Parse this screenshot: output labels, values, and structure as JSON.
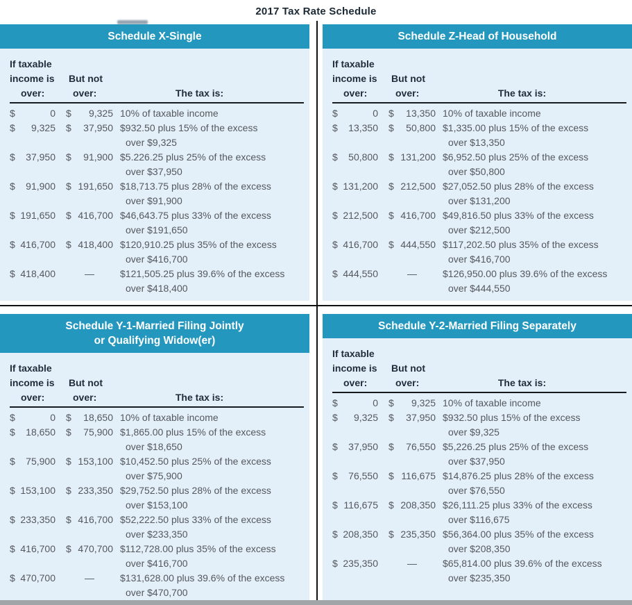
{
  "page_title": "2017 Tax Rate Schedule",
  "currency_symbol": "$",
  "no_upper_limit_symbol": "—",
  "column_headers": {
    "col1_lines": [
      "If taxable",
      "income is",
      "over:"
    ],
    "col2_lines": [
      "But not",
      "over:"
    ],
    "col3": "The tax is:"
  },
  "colors": {
    "header_teal": "#2397be",
    "panel_background": "#e3f0fa",
    "header_text": "#ffffff",
    "body_text": "#55575c",
    "column_header_text": "#1f2d3a",
    "divider": "#101010",
    "bottom_bar": "#a2a5a7"
  },
  "schedules": [
    {
      "id": "x-single",
      "title_lines": [
        "Schedule X-Single"
      ],
      "rows": [
        [
          "0",
          "9,325",
          "10% of taxable income",
          ""
        ],
        [
          "9,325",
          "37,950",
          "$932.50 plus 15% of the excess",
          "over $9,325"
        ],
        [
          "37,950",
          "91,900",
          "$5.226.25 plus 25% of the excess",
          "over $37,950"
        ],
        [
          "91,900",
          "191,650",
          "$18,713.75 plus 28% of the excess",
          "over $91,900"
        ],
        [
          "191,650",
          "416,700",
          "$46,643.75 plus 33% of the excess",
          "over $191,650"
        ],
        [
          "416,700",
          "418,400",
          "$120,910.25 plus 35% of the excess",
          "over $416,700"
        ],
        [
          "418,400",
          "—",
          "$121,505.25 plus 39.6% of the excess",
          "over $418,400"
        ]
      ]
    },
    {
      "id": "z-head-of-household",
      "title_lines": [
        "Schedule Z-Head of Household"
      ],
      "rows": [
        [
          "0",
          "13,350",
          "10% of taxable income",
          ""
        ],
        [
          "13,350",
          "50,800",
          "$1,335.00 plus 15% of the excess",
          "over $13,350"
        ],
        [
          "50,800",
          "131,200",
          "$6,952.50 plus 25% of the excess",
          "over $50,800"
        ],
        [
          "131,200",
          "212,500",
          "$27,052.50 plus 28% of the excess",
          "over $131,200"
        ],
        [
          "212,500",
          "416,700",
          "$49,816.50 plus 33% of the excess",
          "over $212,500"
        ],
        [
          "416,700",
          "444,550",
          "$117,202.50 plus 35% of the excess",
          "over $416,700"
        ],
        [
          "444,550",
          "—",
          "$126,950.00 plus 39.6% of the excess",
          "over $444,550"
        ]
      ]
    },
    {
      "id": "y1-married-filing-jointly",
      "title_lines": [
        "Schedule Y-1-Married Filing Jointly",
        "or Qualifying Widow(er)"
      ],
      "rows": [
        [
          "0",
          "18,650",
          "10% of taxable income",
          ""
        ],
        [
          "18,650",
          "75,900",
          "$1,865.00 plus 15% of the excess",
          "over $18,650"
        ],
        [
          "75,900",
          "153,100",
          "$10,452.50 plus 25% of the excess",
          "over $75,900"
        ],
        [
          "153,100",
          "233,350",
          "$29,752.50 plus 28% of the excess",
          "over $153,100"
        ],
        [
          "233,350",
          "416,700",
          "$52,222.50 plus 33% of the excess",
          "over $233,350"
        ],
        [
          "416,700",
          "470,700",
          "$112,728.00 plus 35% of the excess",
          "over $416,700"
        ],
        [
          "470,700",
          "—",
          "$131,628.00 plus 39.6% of the excess",
          "over $470,700"
        ]
      ]
    },
    {
      "id": "y2-married-filing-separately",
      "title_lines": [
        "Schedule Y-2-Married Filing Separately"
      ],
      "rows": [
        [
          "0",
          "9,325",
          "10% of taxable income",
          ""
        ],
        [
          "9,325",
          "37,950",
          "$932.50 plus 15% of the excess",
          "over $9,325"
        ],
        [
          "37,950",
          "76,550",
          "$5,226.25 plus 25% of the excess",
          "over $37,950"
        ],
        [
          "76,550",
          "116,675",
          "$14,876.25 plus 28% of the excess",
          "over $76,550"
        ],
        [
          "116,675",
          "208,350",
          "$26,111.25 plus 33% of the excess",
          "over $116,675"
        ],
        [
          "208,350",
          "235,350",
          "$56,364.00 plus 35% of the excess",
          "over $208,350"
        ],
        [
          "235,350",
          "—",
          "$65,814.00 plus 39.6% of the excess",
          "over $235,350"
        ]
      ]
    }
  ]
}
